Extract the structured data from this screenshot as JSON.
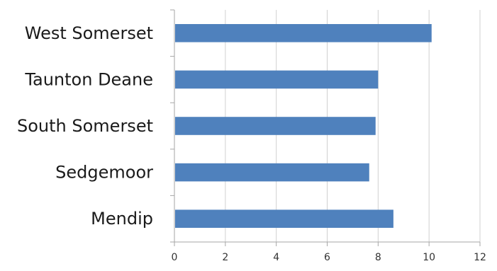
{
  "chart_data": {
    "type": "bar",
    "orientation": "horizontal",
    "title": "",
    "xlabel": "",
    "ylabel": "",
    "categories": [
      "West Somerset",
      "Taunton Deane",
      "South Somerset",
      "Sedgemoor",
      "Mendip"
    ],
    "values": [
      10.1,
      8.0,
      7.9,
      7.65,
      8.6
    ],
    "xlim": [
      0,
      12
    ],
    "x_ticks": [
      "0",
      "2",
      "4",
      "6",
      "8",
      "10",
      "12"
    ],
    "grid": "vertical",
    "legend": "none",
    "bar_color": "#4f81bd",
    "grid_color": "#d0d0d0",
    "axis_color": "#a6a6a6"
  }
}
